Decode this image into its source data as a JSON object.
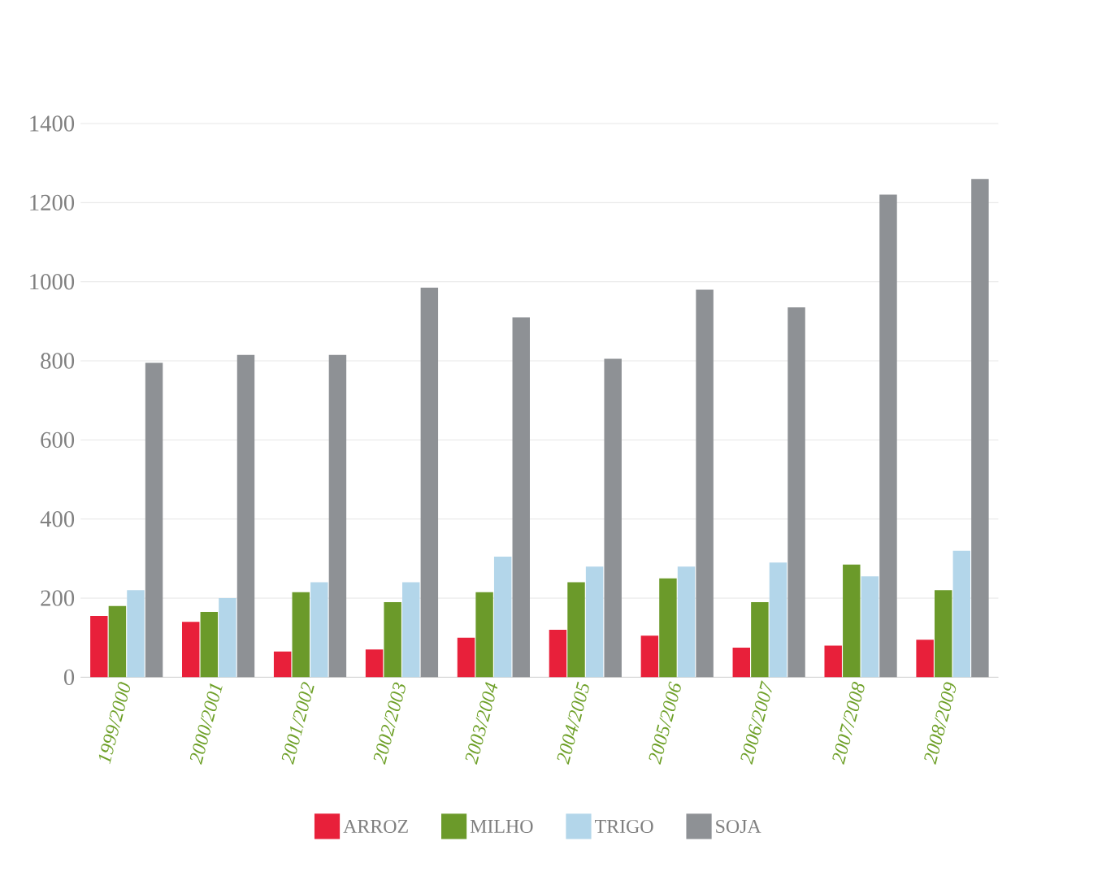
{
  "chart_data": {
    "type": "bar",
    "categories": [
      "1999/2000",
      "2000/2001",
      "2001/2002",
      "2002/2003",
      "2003/2004",
      "2004/2005",
      "2005/2006",
      "2006/2007",
      "2007/2008",
      "2008/2009"
    ],
    "series": [
      {
        "name": "ARROZ",
        "color": "#e8203a",
        "values": [
          155,
          140,
          65,
          70,
          100,
          120,
          105,
          75,
          80,
          95
        ]
      },
      {
        "name": "MILHO",
        "color": "#6b9a2a",
        "values": [
          180,
          165,
          215,
          190,
          215,
          240,
          250,
          190,
          285,
          220
        ]
      },
      {
        "name": "TRIGO",
        "color": "#b3d6ea",
        "values": [
          220,
          200,
          240,
          240,
          305,
          280,
          280,
          290,
          255,
          320
        ]
      },
      {
        "name": "SOJA",
        "color": "#8e9195",
        "values": [
          795,
          815,
          815,
          985,
          910,
          805,
          980,
          935,
          1220,
          1260
        ]
      }
    ],
    "ylim": [
      0,
      1400
    ],
    "yticks": [
      0,
      200,
      400,
      600,
      800,
      1000,
      1200,
      1400
    ],
    "grid": "y",
    "legend": "bottom"
  }
}
